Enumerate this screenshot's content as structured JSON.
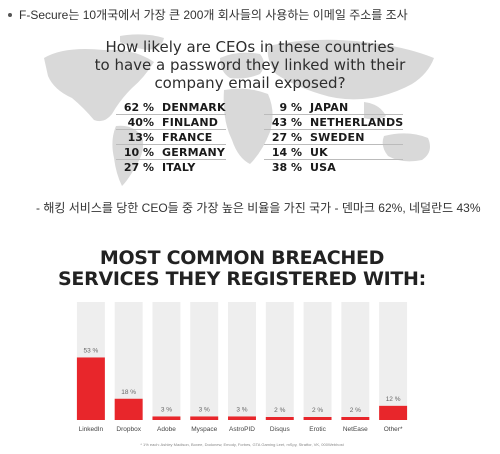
{
  "bullet_text": "F-Secure는 10개국에서 가장 큰 200개 회사들의 사용하는 이메일 주소를 조사",
  "caption_text": "- 해킹 서비스를 당한 CEO들 중 가장 높은 비율을 가진 국가 - 덴마크 62%, 네덜란드 43%",
  "infographic1": {
    "question_lines": [
      "How likely are CEOs in these countries",
      "to have a password they linked with their",
      "company email exposed?"
    ],
    "left_column": [
      {
        "pct": "62 %",
        "country": "DENMARK"
      },
      {
        "pct": "40%",
        "country": "FINLAND"
      },
      {
        "pct": "13%",
        "country": "FRANCE"
      },
      {
        "pct": "10 %",
        "country": "GERMANY"
      },
      {
        "pct": "27 %",
        "country": "ITALY"
      }
    ],
    "right_column": [
      {
        "pct": "9 %",
        "country": "JAPAN"
      },
      {
        "pct": "43 %",
        "country": "NETHERLANDS"
      },
      {
        "pct": "27 %",
        "country": "SWEDEN"
      },
      {
        "pct": "14 %",
        "country": "UK"
      },
      {
        "pct": "38 %",
        "country": "USA"
      }
    ]
  },
  "infographic2": {
    "title_line1": "MOST COMMON BREACHED",
    "title_line2": "SERVICES THEY REGISTERED WITH:",
    "footnote": "* 1% each: Ashley Madison, Boxee, Dodonew, Emody, Forbes, GTA Gaming Leet, mSpy, Stratfor, VK, 000Webhost",
    "bar_color": "#e8262b",
    "track_color": "#eeeeee"
  },
  "chart_data": {
    "type": "bar",
    "categories": [
      "LinkedIn",
      "Dropbox",
      "Adobe",
      "Myspace",
      "AstroPID",
      "Disqus",
      "Erotic",
      "NetEase",
      "Other*"
    ],
    "values": [
      53,
      18,
      3,
      3,
      3,
      2,
      2,
      2,
      12
    ],
    "value_labels": [
      "53 %",
      "18 %",
      "3 %",
      "3 %",
      "3 %",
      "2 %",
      "2 %",
      "2 %",
      "12 %"
    ],
    "title": "MOST COMMON BREACHED SERVICES THEY REGISTERED WITH:",
    "ylim": [
      0,
      100
    ]
  }
}
